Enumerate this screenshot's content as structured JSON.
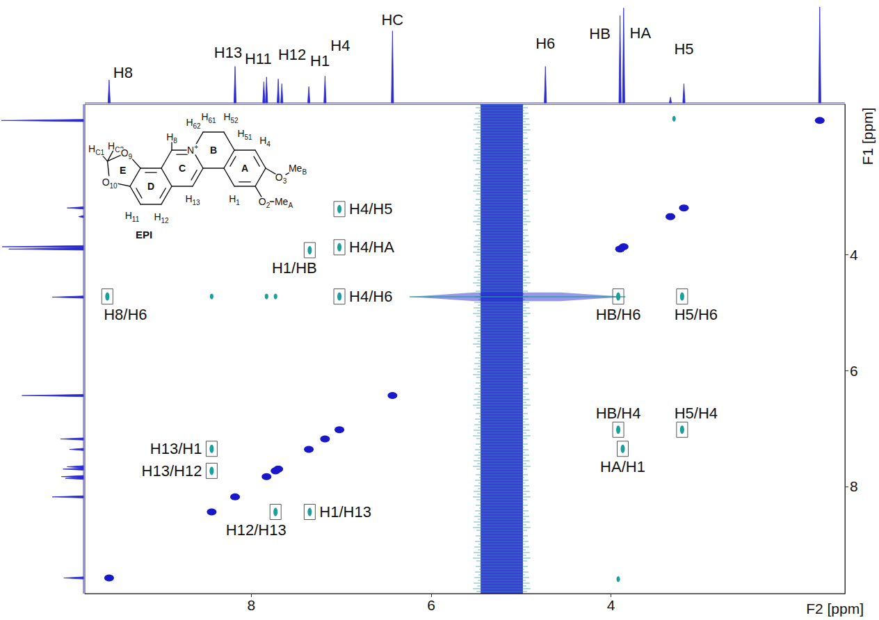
{
  "chart_data": {
    "type": "nmr_2d",
    "x_label": "F2 [ppm]",
    "y_label": "F1 [ppm]",
    "xlim": [
      9.85,
      1.4
    ],
    "ylim": [
      9.85,
      1.4
    ],
    "xticks": [
      8,
      6,
      4
    ],
    "yticks": [
      4,
      6,
      8
    ],
    "projection": {
      "color": "#2a2ad2",
      "ylim": [
        0,
        100
      ],
      "peaks": [
        {
          "label": "H8",
          "shift": 9.58,
          "height": 24
        },
        {
          "label": "H13",
          "shift": 8.18,
          "height": 38
        },
        {
          "label": null,
          "shift": 7.86,
          "height": 22
        },
        {
          "label": "H11",
          "shift": 7.83,
          "height": 27
        },
        {
          "label": "H12",
          "shift": 7.7,
          "height": 25
        },
        {
          "label": null,
          "shift": 7.66,
          "height": 20
        },
        {
          "label": "H1",
          "shift": 7.36,
          "height": 17
        },
        {
          "label": "H4",
          "shift": 7.18,
          "height": 28
        },
        {
          "label": "HC",
          "shift": 6.43,
          "height": 75
        },
        {
          "label": "H6",
          "shift": 4.73,
          "height": 38
        },
        {
          "label": "HB",
          "shift": 3.9,
          "height": 91
        },
        {
          "label": "HA",
          "shift": 3.86,
          "height": 99
        },
        {
          "label": null,
          "shift": 3.34,
          "height": 6
        },
        {
          "label": "H5",
          "shift": 3.19,
          "height": 20
        },
        {
          "label": null,
          "shift": 1.68,
          "height": 100
        }
      ]
    },
    "diagonal": {
      "color": "#1818c8",
      "shifts": [
        9.58,
        8.44,
        8.18,
        7.83,
        7.73,
        7.7,
        7.36,
        7.18,
        7.02,
        6.43,
        3.9,
        3.86,
        3.34,
        3.19,
        1.68
      ]
    },
    "cross_peaks": {
      "color": "#1b9e9e",
      "peaks": [
        {
          "label": "H4/H5",
          "x": 7.02,
          "y": 3.21
        },
        {
          "label": "H4/HA",
          "x": 7.02,
          "y": 3.87
        },
        {
          "label": "H1/HB",
          "x": 7.35,
          "y": 3.92
        },
        {
          "label": "H4/H6",
          "x": 7.02,
          "y": 4.72
        },
        {
          "label": "H8/H6",
          "x": 9.6,
          "y": 4.72
        },
        {
          "label": "HB/H6",
          "x": 3.92,
          "y": 4.72
        },
        {
          "label": "H5/H6",
          "x": 3.21,
          "y": 4.72
        },
        {
          "label": "HB/H4",
          "x": 3.92,
          "y": 7.02
        },
        {
          "label": "H5/H4",
          "x": 3.21,
          "y": 7.02
        },
        {
          "label": "HA/H1",
          "x": 3.87,
          "y": 7.35
        },
        {
          "label": "H13/H1",
          "x": 8.44,
          "y": 7.35
        },
        {
          "label": "H13/H12",
          "x": 8.44,
          "y": 7.73
        },
        {
          "label": "H12/H13",
          "x": 7.73,
          "y": 8.44
        },
        {
          "label": "H1/H13",
          "x": 7.35,
          "y": 8.44
        }
      ]
    },
    "other_peaks": {
      "color": "#1b9e9e",
      "points": [
        [
          8.44,
          4.72
        ],
        [
          7.83,
          4.72
        ],
        [
          7.73,
          4.72
        ],
        [
          3.3,
          1.65
        ],
        [
          3.92,
          9.6
        ]
      ]
    },
    "solvent": {
      "color": "#1a1ad0",
      "x_band": [
        5.45,
        4.98
      ],
      "y_band": [
        4.65,
        4.8
      ],
      "x_streak": [
        6.24,
        3.84
      ]
    }
  },
  "structure": {
    "title": "EPI",
    "rings": [
      "A",
      "B",
      "C",
      "D",
      "E"
    ],
    "atoms": [
      {
        "text": "H",
        "sub": "C1"
      },
      {
        "text": "H",
        "sub": "C2"
      },
      {
        "text": "O",
        "sub": "9"
      },
      {
        "text": "O",
        "sub": "10"
      },
      {
        "text": "H",
        "sub": "8"
      },
      {
        "text": "N",
        "sup": "+"
      },
      {
        "text": "H",
        "sub": "62"
      },
      {
        "text": "H",
        "sub": "61"
      },
      {
        "text": "H",
        "sub": "52"
      },
      {
        "text": "H",
        "sub": "51"
      },
      {
        "text": "H",
        "sub": "4"
      },
      {
        "text": "H",
        "sub": "11"
      },
      {
        "text": "H",
        "sub": "12"
      },
      {
        "text": "H",
        "sub": "13"
      },
      {
        "text": "H",
        "sub": "1"
      },
      {
        "text": "O",
        "sub": "3"
      },
      {
        "text": "Me",
        "sub": "B"
      },
      {
        "text": "O",
        "sub": "2"
      },
      {
        "text": "Me",
        "sub": "A"
      }
    ]
  }
}
